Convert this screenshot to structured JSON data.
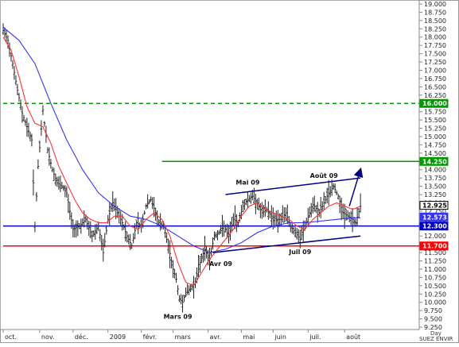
{
  "chart_data": {
    "type": "ohlc-bar",
    "grid": false,
    "y_axis": {
      "position": "right",
      "ylim": [
        9.25,
        19.0
      ],
      "ticks": [
        "9.250",
        "9.500",
        "9.750",
        "10.000",
        "10.250",
        "10.500",
        "10.750",
        "11.000",
        "11.250",
        "11.500",
        "11.750",
        "12.000",
        "12.250",
        "12.500",
        "12.750",
        "13.000",
        "13.250",
        "13.500",
        "13.750",
        "14.000",
        "14.250",
        "14.500",
        "14.750",
        "15.000",
        "15.250",
        "15.500",
        "15.750",
        "16.000",
        "16.250",
        "16.500",
        "16.750",
        "17.000",
        "17.250",
        "17.500",
        "17.750",
        "18.000",
        "18.250",
        "18.500",
        "18.750",
        "19.000"
      ]
    },
    "x_axis": {
      "range": [
        0,
        260
      ],
      "tick_labels": [
        {
          "label": "oct.",
          "t": 0
        },
        {
          "label": "nov.",
          "t": 23
        },
        {
          "label": "déc.",
          "t": 44
        },
        {
          "label": "2009",
          "t": 66
        },
        {
          "label": "févr.",
          "t": 87
        },
        {
          "label": "mars",
          "t": 107
        },
        {
          "label": "avr.",
          "t": 129
        },
        {
          "label": "mai",
          "t": 150
        },
        {
          "label": "juin",
          "t": 170
        },
        {
          "label": "juil.",
          "t": 192
        },
        {
          "label": "août",
          "t": 215
        }
      ],
      "unit_label": "Day"
    },
    "price_anchors": [
      [
        0,
        18.2
      ],
      [
        3,
        17.9
      ],
      [
        6,
        17.2
      ],
      [
        9,
        16.4
      ],
      [
        12,
        15.7
      ],
      [
        15,
        15.3
      ],
      [
        18,
        14.9
      ],
      [
        20,
        12.3
      ],
      [
        22,
        14.1
      ],
      [
        25,
        15.8
      ],
      [
        28,
        14.6
      ],
      [
        31,
        14.0
      ],
      [
        34,
        13.6
      ],
      [
        37,
        13.5
      ],
      [
        40,
        13.3
      ],
      [
        44,
        12.2
      ],
      [
        48,
        12.3
      ],
      [
        52,
        12.5
      ],
      [
        56,
        12.0
      ],
      [
        60,
        12.3
      ],
      [
        63,
        11.5
      ],
      [
        66,
        12.5
      ],
      [
        69,
        13.0
      ],
      [
        72,
        12.7
      ],
      [
        75,
        12.4
      ],
      [
        78,
        12.0
      ],
      [
        81,
        11.7
      ],
      [
        84,
        12.4
      ],
      [
        87,
        12.3
      ],
      [
        90,
        12.9
      ],
      [
        93,
        13.1
      ],
      [
        96,
        12.7
      ],
      [
        98,
        12.4
      ],
      [
        101,
        12.3
      ],
      [
        104,
        11.7
      ],
      [
        107,
        11.0
      ],
      [
        109,
        10.7
      ],
      [
        111,
        10.1
      ],
      [
        113,
        10.0
      ],
      [
        115,
        10.3
      ],
      [
        118,
        10.4
      ],
      [
        121,
        10.6
      ],
      [
        124,
        11.2
      ],
      [
        127,
        11.6
      ],
      [
        130,
        11.3
      ],
      [
        133,
        12.0
      ],
      [
        136,
        12.1
      ],
      [
        139,
        12.3
      ],
      [
        142,
        12.0
      ],
      [
        145,
        12.5
      ],
      [
        148,
        12.4
      ],
      [
        151,
        12.9
      ],
      [
        154,
        13.1
      ],
      [
        157,
        13.2
      ],
      [
        160,
        13.0
      ],
      [
        163,
        12.7
      ],
      [
        166,
        12.8
      ],
      [
        169,
        12.6
      ],
      [
        172,
        12.5
      ],
      [
        175,
        12.5
      ],
      [
        178,
        12.7
      ],
      [
        181,
        12.3
      ],
      [
        184,
        12.1
      ],
      [
        187,
        11.9
      ],
      [
        190,
        12.3
      ],
      [
        193,
        12.7
      ],
      [
        196,
        12.9
      ],
      [
        199,
        12.7
      ],
      [
        202,
        13.0
      ],
      [
        205,
        13.3
      ],
      [
        208,
        13.5
      ],
      [
        211,
        13.2
      ],
      [
        214,
        12.7
      ],
      [
        217,
        12.6
      ],
      [
        220,
        12.5
      ],
      [
        222,
        12.4
      ],
      [
        225,
        12.9
      ]
    ],
    "series": [
      {
        "kind": "moving_average_slow",
        "color": "#3333ff",
        "points": [
          [
            0,
            18.3
          ],
          [
            10,
            17.9
          ],
          [
            20,
            17.2
          ],
          [
            30,
            16.0
          ],
          [
            40,
            14.9
          ],
          [
            50,
            14.0
          ],
          [
            60,
            13.3
          ],
          [
            70,
            12.9
          ],
          [
            80,
            12.6
          ],
          [
            90,
            12.5
          ],
          [
            100,
            12.3
          ],
          [
            110,
            12.0
          ],
          [
            120,
            11.7
          ],
          [
            130,
            11.5
          ],
          [
            140,
            11.6
          ],
          [
            150,
            11.8
          ],
          [
            160,
            12.1
          ],
          [
            170,
            12.3
          ],
          [
            180,
            12.4
          ],
          [
            190,
            12.4
          ],
          [
            200,
            12.45
          ],
          [
            210,
            12.5
          ],
          [
            220,
            12.55
          ],
          [
            225,
            12.55
          ]
        ]
      },
      {
        "kind": "moving_average_fast",
        "color": "#ff3333",
        "points": [
          [
            0,
            18.0
          ],
          [
            5,
            17.6
          ],
          [
            10,
            16.8
          ],
          [
            15,
            15.9
          ],
          [
            20,
            15.4
          ],
          [
            25,
            15.3
          ],
          [
            30,
            14.8
          ],
          [
            35,
            14.1
          ],
          [
            40,
            13.6
          ],
          [
            45,
            13.1
          ],
          [
            50,
            12.7
          ],
          [
            55,
            12.5
          ],
          [
            60,
            12.4
          ],
          [
            65,
            12.4
          ],
          [
            70,
            12.6
          ],
          [
            75,
            12.6
          ],
          [
            80,
            12.3
          ],
          [
            85,
            12.2
          ],
          [
            90,
            12.5
          ],
          [
            95,
            12.7
          ],
          [
            100,
            12.5
          ],
          [
            105,
            12.0
          ],
          [
            110,
            11.2
          ],
          [
            115,
            10.6
          ],
          [
            120,
            10.5
          ],
          [
            125,
            10.9
          ],
          [
            130,
            11.3
          ],
          [
            135,
            11.6
          ],
          [
            140,
            11.9
          ],
          [
            145,
            12.2
          ],
          [
            150,
            12.6
          ],
          [
            155,
            12.9
          ],
          [
            160,
            13.0
          ],
          [
            165,
            12.8
          ],
          [
            170,
            12.7
          ],
          [
            175,
            12.6
          ],
          [
            180,
            12.5
          ],
          [
            185,
            12.3
          ],
          [
            190,
            12.2
          ],
          [
            195,
            12.5
          ],
          [
            200,
            12.7
          ],
          [
            205,
            12.9
          ],
          [
            210,
            13.0
          ],
          [
            215,
            12.9
          ],
          [
            220,
            12.8
          ],
          [
            225,
            12.9
          ]
        ]
      }
    ],
    "horizontal_levels": [
      {
        "value": 16.0,
        "color": "#009900",
        "style": "dashed",
        "x_from": 0
      },
      {
        "value": 14.25,
        "color": "#009900",
        "style": "solid",
        "x_from": 100
      },
      {
        "value": 12.3,
        "color": "#0000cc",
        "style": "solid",
        "x_from": 0
      },
      {
        "value": 11.7,
        "color": "#ff0000",
        "style": "solid",
        "x_from": 0
      }
    ],
    "trendlines": [
      {
        "from": [
          140,
          13.25
        ],
        "to": [
          225,
          13.75
        ],
        "color": "#000080"
      },
      {
        "from": [
          132,
          11.5
        ],
        "to": [
          225,
          12.0
        ],
        "color": "#000080"
      }
    ],
    "arrow": {
      "from": [
        218,
        12.9
      ],
      "to": [
        225,
        14.0
      ],
      "color": "#000080"
    },
    "y_flags": [
      {
        "value": 16.0,
        "text": "16.000",
        "bg": "#009900",
        "fg": "#ffffff"
      },
      {
        "value": 14.25,
        "text": "14.250",
        "bg": "#009900",
        "fg": "#ffffff"
      },
      {
        "value": 12.925,
        "text": "12.925",
        "bg": "#ffffff",
        "fg": "#000000",
        "border": "#000000"
      },
      {
        "value": 12.573,
        "text": "12.573",
        "bg": "#3333ff",
        "fg": "#ffffff"
      },
      {
        "value": 12.3,
        "text": "12.300",
        "bg": "#0000cc",
        "fg": "#ffffff"
      },
      {
        "value": 11.7,
        "text": "11.700",
        "bg": "#ff0000",
        "fg": "#ffffff"
      }
    ],
    "annotations": [
      {
        "text": "Mai 09",
        "t": 154,
        "y": 13.55
      },
      {
        "text": "Août 09",
        "t": 202,
        "y": 13.75
      },
      {
        "text": "Avr 09",
        "t": 137,
        "y": 11.1
      },
      {
        "text": "Juil 09",
        "t": 187,
        "y": 11.45
      },
      {
        "text": "Mars 09",
        "t": 110,
        "y": 9.5
      }
    ],
    "footer": "SUEZ ENVIR"
  }
}
